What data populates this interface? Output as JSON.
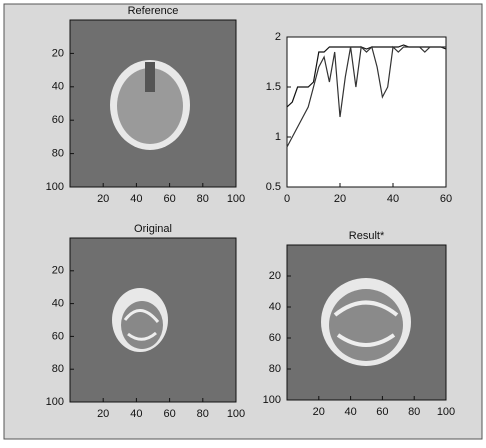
{
  "chart_data": [
    {
      "type": "image",
      "title": "Reference",
      "xlim": [
        0,
        100
      ],
      "ylim": [
        100,
        0
      ],
      "xticks": [
        20,
        40,
        60,
        80,
        100
      ],
      "yticks": [
        20,
        40,
        60,
        80,
        100
      ]
    },
    {
      "type": "line",
      "xlim": [
        0,
        60
      ],
      "ylim": [
        0.5,
        2
      ],
      "xticks": [
        0,
        20,
        40,
        60
      ],
      "yticks": [
        0.5,
        1,
        1.5,
        2
      ],
      "x": [
        0,
        2,
        4,
        6,
        8,
        10,
        12,
        14,
        16,
        18,
        20,
        22,
        24,
        26,
        28,
        30,
        32,
        34,
        36,
        38,
        40,
        42,
        44,
        46,
        48,
        50,
        52,
        54,
        56,
        58,
        60
      ],
      "series": [
        {
          "color": "#111111",
          "values": [
            1.3,
            1.35,
            1.5,
            1.5,
            1.5,
            1.55,
            1.85,
            1.85,
            1.9,
            1.9,
            1.9,
            1.9,
            1.9,
            1.9,
            1.9,
            1.88,
            1.9,
            1.9,
            1.9,
            1.9,
            1.9,
            1.9,
            1.92,
            1.9,
            1.9,
            1.9,
            1.9,
            1.9,
            1.9,
            1.9,
            1.88
          ]
        },
        {
          "color": "#333333",
          "values": [
            0.9,
            1.0,
            1.1,
            1.2,
            1.3,
            1.5,
            1.7,
            1.8,
            1.55,
            1.85,
            1.2,
            1.6,
            1.9,
            1.5,
            1.9,
            1.85,
            1.9,
            1.7,
            1.4,
            1.5,
            1.9,
            1.85,
            1.9,
            1.9,
            1.9,
            1.9,
            1.85,
            1.9,
            1.9,
            1.9,
            1.9
          ]
        }
      ]
    },
    {
      "type": "image",
      "title": "Original",
      "xlim": [
        0,
        100
      ],
      "ylim": [
        100,
        0
      ],
      "xticks": [
        20,
        40,
        60,
        80,
        100
      ],
      "yticks": [
        20,
        40,
        60,
        80,
        100
      ]
    },
    {
      "type": "image",
      "title": "Result*",
      "xlim": [
        0,
        100
      ],
      "ylim": [
        100,
        0
      ],
      "xticks": [
        20,
        40,
        60,
        80,
        100
      ],
      "yticks": [
        20,
        40,
        60,
        80,
        100
      ]
    }
  ]
}
